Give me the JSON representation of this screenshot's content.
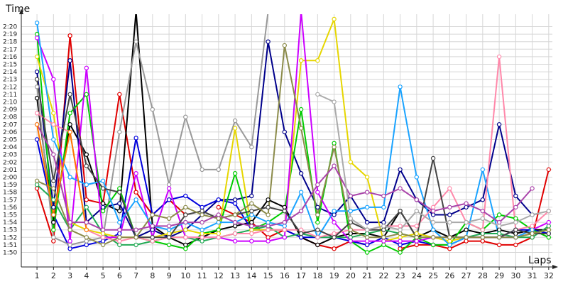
{
  "chart_data": {
    "type": "line",
    "ylabel": "Time",
    "xlabel": "Laps",
    "x": [
      1,
      2,
      3,
      4,
      5,
      6,
      7,
      8,
      9,
      10,
      11,
      12,
      13,
      14,
      15,
      16,
      17,
      18,
      19,
      20,
      21,
      22,
      23,
      24,
      25,
      26,
      27,
      28,
      29,
      30,
      31,
      32
    ],
    "xlim": [
      0,
      32
    ],
    "ylim": [
      109,
      141
    ],
    "yticks": [
      {
        "v": 110,
        "label": "1:50"
      },
      {
        "v": 111,
        "label": "1:51"
      },
      {
        "v": 112,
        "label": "1:52"
      },
      {
        "v": 113,
        "label": "1:53"
      },
      {
        "v": 114,
        "label": "1:54"
      },
      {
        "v": 115,
        "label": "1:55"
      },
      {
        "v": 116,
        "label": "1:56"
      },
      {
        "v": 117,
        "label": "1:57"
      },
      {
        "v": 118,
        "label": "1:58"
      },
      {
        "v": 119,
        "label": "1:59"
      },
      {
        "v": 120,
        "label": "2:00"
      },
      {
        "v": 121,
        "label": "2:01"
      },
      {
        "v": 122,
        "label": "2:02"
      },
      {
        "v": 123,
        "label": "2:03"
      },
      {
        "v": 124,
        "label": "2:04"
      },
      {
        "v": 125,
        "label": "2:05"
      },
      {
        "v": 126,
        "label": "2:06"
      },
      {
        "v": 127,
        "label": "2:07"
      },
      {
        "v": 128,
        "label": "2:08"
      },
      {
        "v": 129,
        "label": "2:09"
      },
      {
        "v": 130,
        "label": "2:10"
      },
      {
        "v": 131,
        "label": "2:11"
      },
      {
        "v": 132,
        "label": "2:12"
      },
      {
        "v": 133,
        "label": "2:13"
      },
      {
        "v": 134,
        "label": "2:14"
      },
      {
        "v": 135,
        "label": "2:15"
      },
      {
        "v": 136,
        "label": "2:16"
      },
      {
        "v": 137,
        "label": "2:17"
      },
      {
        "v": 138,
        "label": "2:18"
      },
      {
        "v": 139,
        "label": "2:19"
      },
      {
        "v": 140,
        "label": "2:20"
      }
    ],
    "grid": true,
    "series": [
      {
        "color": "#e00000",
        "values": [
          118.5,
          111.5,
          138.8,
          117,
          116.5,
          131,
          118,
          115,
          117,
          115,
          null,
          116,
          115,
          114,
          112,
          113,
          112,
          111,
          110.5,
          111.5,
          111,
          null,
          110.5,
          111,
          111,
          110.5,
          111.5,
          111.5,
          111,
          111,
          112,
          121
        ]
      },
      {
        "color": "#000000",
        "values": [
          130.5,
          114,
          127,
          123,
          116.5,
          115.5,
          142,
          113.5,
          112,
          111,
          112,
          113,
          113.5,
          114,
          117,
          116,
          112,
          111,
          112,
          112.5,
          112.5,
          112,
          115.5,
          112,
          113,
          112,
          113,
          112.5,
          113,
          112.5,
          113,
          113
        ]
      },
      {
        "color": "#00008b",
        "values": [
          134,
          116,
          135.5,
          114,
          116,
          116.5,
          112,
          113,
          112,
          113,
          115,
          117,
          117,
          117.5,
          138,
          126,
          120.5,
          116,
          115,
          117.5,
          114,
          114,
          121,
          117,
          115,
          115,
          116,
          117,
          127,
          117.5,
          115,
          null
        ]
      },
      {
        "color": "#0000dd",
        "values": [
          125,
          115,
          110.5,
          111,
          111.5,
          112.5,
          125.2,
          115,
          117,
          117.5,
          116,
          117,
          116.5,
          113,
          113,
          113,
          112,
          112,
          112,
          111.5,
          111,
          112,
          111,
          111.5,
          111,
          111,
          112,
          112,
          112,
          113,
          113,
          112.5
        ]
      },
      {
        "color": "#999999",
        "values": [
          132,
          112,
          111,
          111.5,
          112,
          126,
          138,
          129,
          119,
          128,
          121,
          121,
          127.5,
          124,
          142,
          null,
          null,
          null,
          null,
          null,
          null,
          null,
          null,
          null,
          null,
          null,
          null,
          null,
          null,
          null,
          null,
          null
        ]
      },
      {
        "color": "#00cc00",
        "values": [
          139,
          113,
          128.5,
          131,
          115.5,
          118.5,
          112,
          111.5,
          111,
          110.5,
          112.5,
          113,
          120.5,
          113,
          114,
          115.5,
          129,
          114,
          124.5,
          111.5,
          110,
          111,
          110,
          112,
          111,
          111,
          114,
          113,
          115,
          114.5,
          113,
          112
        ]
      },
      {
        "color": "#22aa55",
        "values": [
          119,
          117,
          113,
          116,
          112.5,
          111,
          111,
          111.5,
          112,
          112,
          111.5,
          112,
          112.5,
          113,
          113.5,
          112,
          112.5,
          112,
          112,
          112,
          112.5,
          113,
          112.5,
          112,
          112,
          112,
          112,
          112.5,
          112.5,
          112,
          112,
          113.5
        ]
      },
      {
        "color": "#e6d600",
        "values": [
          136,
          128.5,
          114,
          113,
          112.5,
          112,
          112,
          112,
          112.5,
          113,
          112.5,
          112.5,
          126.5,
          113,
          113,
          113,
          135.5,
          135.5,
          141,
          122,
          120,
          111.5,
          112,
          112.5,
          112,
          111.5,
          112,
          112,
          112,
          112,
          112.5,
          113
        ]
      },
      {
        "color": "#cc00ff",
        "values": [
          138.5,
          133,
          111.5,
          134.5,
          112,
          112,
          120.5,
          112,
          118.5,
          112,
          112,
          112,
          111.5,
          111.5,
          111.5,
          112,
          142,
          118,
          114,
          111.5,
          111.5,
          111.5,
          111.5,
          111.5,
          112,
          112,
          112,
          112,
          112,
          112,
          113,
          114
        ]
      },
      {
        "color": "#1aa3ff",
        "values": [
          140.5,
          125,
          120,
          119,
          119.5,
          114,
          117,
          113.5,
          113,
          114,
          113,
          114,
          114,
          115,
          114,
          113.5,
          118,
          112,
          115.5,
          115.5,
          116,
          116,
          132,
          120,
          113,
          111,
          112,
          121,
          112,
          112,
          113,
          null
        ]
      },
      {
        "color": "#ff88aa",
        "values": [
          128.5,
          127,
          126,
          113,
          112,
          111.5,
          112,
          111.5,
          112,
          112,
          112,
          112,
          112.5,
          112.5,
          113,
          113,
          113,
          112,
          112.5,
          113,
          113,
          113.5,
          113.5,
          113.5,
          116,
          118.5,
          114,
          113,
          136,
          113,
          113.5,
          115.5
        ]
      },
      {
        "color": "#444444",
        "values": [
          133,
          119.5,
          131,
          121.5,
          118.5,
          118,
          112,
          112,
          112,
          115,
          115.5,
          114.5,
          115,
          115.5,
          116,
          115.5,
          112.5,
          113,
          112,
          114,
          113,
          113,
          115.5,
          112,
          122.5,
          112,
          112,
          112,
          112,
          113,
          112.5,
          112.5
        ]
      },
      {
        "color": "#8b8b4a",
        "values": [
          119.5,
          118.5,
          113,
          112,
          111,
          112,
          112,
          115,
          114.5,
          116,
          115,
          114.5,
          115,
          116.5,
          115,
          137.5,
          126.5,
          115,
          124,
          113,
          112,
          112,
          112.5,
          112,
          112,
          112,
          112,
          112,
          112,
          112,
          112.5,
          113
        ]
      },
      {
        "color": "#aa44aa",
        "values": [
          127,
          123,
          114,
          114,
          113,
          113,
          113,
          113.5,
          113.5,
          114,
          114,
          115,
          114,
          113.5,
          113.5,
          114,
          115.5,
          119,
          121.5,
          117.5,
          118,
          117.5,
          118.5,
          117,
          115.5,
          116,
          116.5,
          115.5,
          114,
          116,
          118.5,
          null
        ]
      },
      {
        "color": "#aaaaaa",
        "values": [
          null,
          null,
          null,
          null,
          null,
          null,
          null,
          null,
          null,
          null,
          null,
          null,
          null,
          null,
          null,
          null,
          null,
          131,
          130,
          114.5,
          113,
          113.5,
          113,
          115.5,
          114,
          114,
          114,
          114.5,
          113.5,
          114,
          115,
          115.5
        ]
      },
      {
        "color": "#ff7700",
        "values": [
          127,
          115,
          126,
          113,
          null,
          null,
          null,
          null,
          null,
          null,
          null,
          null,
          null,
          null,
          null,
          null,
          null,
          null,
          null,
          null,
          null,
          null,
          null,
          null,
          null,
          null,
          null,
          null,
          null,
          null,
          null,
          null
        ]
      }
    ]
  }
}
